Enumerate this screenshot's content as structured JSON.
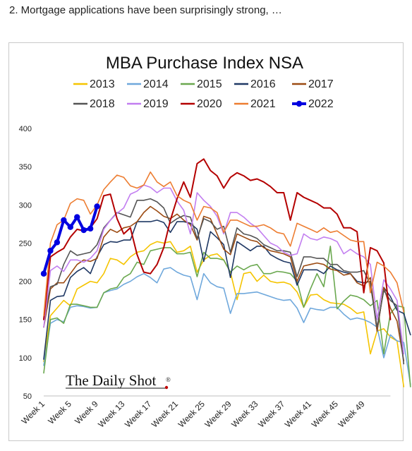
{
  "caption": "2. Mortgage applications have been surprisingly strong, …",
  "watermark": "The Daily Shot",
  "watermark_mark": "®",
  "chart_data": {
    "type": "line",
    "title": "MBA Purchase Index NSA",
    "xlabel": "",
    "ylabel": "",
    "ylim": [
      50,
      400
    ],
    "yticks": [
      50,
      100,
      150,
      200,
      250,
      300,
      350,
      400
    ],
    "xticks": [
      "Week 1",
      "Week 5",
      "Week 9",
      "Week 13",
      "Week 17",
      "Week 21",
      "Week 25",
      "Week 29",
      "Week 33",
      "Week 37",
      "Week 41",
      "Week 45",
      "Week 49"
    ],
    "grid": false,
    "legend_position": "top",
    "series": [
      {
        "name": "2013",
        "color": "#f5c400",
        "width": 1.6,
        "values": [
          95,
          155,
          165,
          175,
          168,
          190,
          195,
          200,
          198,
          210,
          230,
          228,
          222,
          232,
          238,
          240,
          248,
          252,
          250,
          252,
          238,
          240,
          246,
          212,
          228,
          234,
          236,
          228,
          212,
          176,
          210,
          212,
          200,
          208,
          200,
          198,
          199,
          196,
          186,
          166,
          182,
          183,
          176,
          172,
          171,
          170,
          165,
          158,
          160,
          105,
          135,
          138,
          127,
          122,
          62
        ]
      },
      {
        "name": "2014",
        "color": "#6fa8dc",
        "width": 1.6,
        "values": [
          90,
          145,
          150,
          147,
          166,
          168,
          167,
          165,
          166,
          185,
          188,
          190,
          196,
          200,
          206,
          210,
          205,
          198,
          216,
          218,
          212,
          208,
          206,
          176,
          210,
          198,
          193,
          191,
          158,
          184,
          184,
          185,
          186,
          183,
          180,
          177,
          175,
          176,
          165,
          146,
          165,
          163,
          162,
          166,
          166,
          157,
          150,
          152,
          150,
          146,
          140,
          100,
          130,
          122,
          120,
          65
        ]
      },
      {
        "name": "2015",
        "color": "#6aa84f",
        "width": 1.6,
        "values": [
          80,
          150,
          152,
          145,
          170,
          170,
          168,
          166,
          166,
          185,
          190,
          192,
          205,
          210,
          225,
          222,
          240,
          242,
          244,
          244,
          236,
          236,
          238,
          206,
          238,
          230,
          230,
          228,
          212,
          220,
          215,
          220,
          222,
          210,
          210,
          213,
          212,
          210,
          200,
          166,
          190,
          210,
          193,
          246,
          164,
          174,
          182,
          180,
          176,
          168,
          175,
          105,
          158,
          168,
          166,
          62
        ]
      },
      {
        "name": "2016",
        "color": "#1f3864",
        "width": 1.6,
        "values": [
          98,
          175,
          180,
          181,
          205,
          213,
          218,
          210,
          232,
          248,
          252,
          251,
          254,
          254,
          278,
          278,
          278,
          280,
          277,
          264,
          278,
          278,
          276,
          268,
          226,
          265,
          257,
          248,
          205,
          252,
          246,
          240,
          246,
          246,
          235,
          230,
          226,
          224,
          195,
          215,
          215,
          215,
          210,
          220,
          215,
          212,
          210,
          200,
          198,
          200,
          135,
          192,
          180,
          162,
          158,
          130
        ]
      },
      {
        "name": "2017",
        "color": "#9c4b12",
        "width": 1.6,
        "values": [
          140,
          190,
          198,
          198,
          210,
          222,
          228,
          226,
          230,
          258,
          268,
          264,
          270,
          272,
          278,
          290,
          298,
          292,
          285,
          282,
          288,
          280,
          274,
          254,
          285,
          282,
          262,
          242,
          235,
          262,
          258,
          254,
          252,
          244,
          240,
          238,
          236,
          232,
          200,
          220,
          222,
          224,
          222,
          216,
          214,
          208,
          210,
          198,
          194,
          205,
          135,
          192,
          165,
          148,
          96
        ]
      },
      {
        "name": "2018",
        "color": "#555555",
        "width": 1.6,
        "values": [
          150,
          193,
          196,
          222,
          240,
          234,
          236,
          238,
          248,
          270,
          280,
          290,
          287,
          284,
          306,
          306,
          308,
          304,
          296,
          276,
          282,
          286,
          284,
          256,
          282,
          278,
          268,
          272,
          238,
          270,
          262,
          260,
          256,
          248,
          244,
          240,
          240,
          238,
          206,
          232,
          232,
          230,
          230,
          222,
          222,
          214,
          212,
          212,
          214,
          196,
          140,
          188,
          175,
          168,
          92
        ]
      },
      {
        "name": "2019",
        "color": "#c27ef0",
        "width": 1.6,
        "values": [
          140,
          214,
          220,
          213,
          228,
          228,
          225,
          230,
          240,
          268,
          280,
          289,
          296,
          314,
          318,
          326,
          323,
          316,
          322,
          322,
          305,
          293,
          262,
          316,
          306,
          298,
          285,
          262,
          290,
          290,
          284,
          276,
          270,
          260,
          250,
          246,
          238,
          234,
          236,
          262,
          256,
          254,
          258,
          256,
          252,
          236,
          242,
          236,
          232,
          222,
          150,
          202,
          190,
          175,
          105
        ]
      },
      {
        "name": "2020",
        "color": "#b40000",
        "width": 2.0,
        "values": [
          150,
          232,
          238,
          243,
          258,
          268,
          266,
          270,
          282,
          312,
          314,
          282,
          262,
          270,
          235,
          212,
          210,
          222,
          244,
          280,
          308,
          330,
          310,
          354,
          360,
          345,
          338,
          322,
          336,
          342,
          338,
          332,
          334,
          330,
          324,
          316,
          316,
          280,
          316,
          310,
          306,
          302,
          296,
          296,
          288,
          270,
          270,
          265,
          185,
          244,
          240,
          224,
          150
        ]
      },
      {
        "name": "2021",
        "color": "#ed7d31",
        "width": 1.6,
        "values": [
          155,
          250,
          274,
          280,
          302,
          308,
          306,
          288,
          300,
          320,
          330,
          339,
          336,
          325,
          322,
          326,
          343,
          330,
          324,
          330,
          312,
          306,
          302,
          280,
          298,
          296,
          290,
          264,
          280,
          280,
          276,
          272,
          272,
          274,
          270,
          264,
          262,
          246,
          276,
          272,
          268,
          264,
          270,
          264,
          266,
          260,
          254,
          252,
          252,
          185,
          225,
          220,
          212,
          198,
          160
        ]
      },
      {
        "name": "2022",
        "color": "#0000e0",
        "width": 4.0,
        "marker": true,
        "values": [
          210,
          240,
          251,
          280,
          271,
          284,
          267,
          269,
          298
        ]
      }
    ]
  }
}
